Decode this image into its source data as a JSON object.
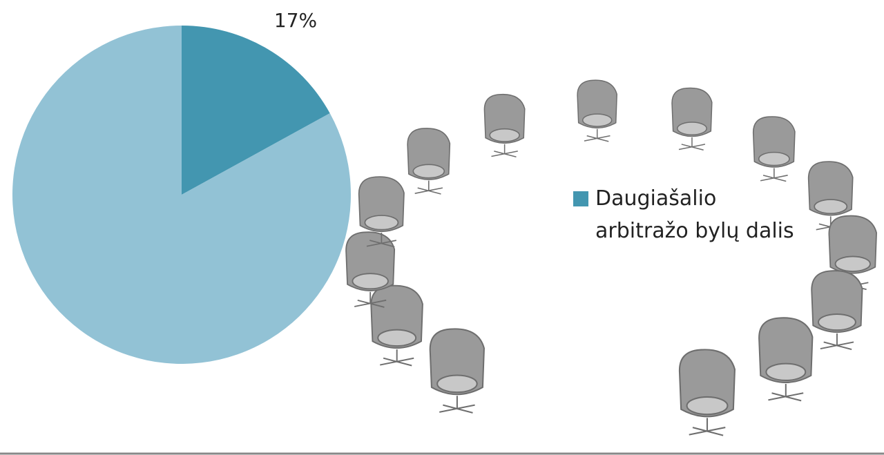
{
  "chart_data": {
    "type": "pie",
    "categories": [
      "Daugiašalio arbitražo bylų dalis",
      null
    ],
    "values": [
      17,
      83
    ],
    "value_labels": [
      "17%",
      null
    ],
    "colors": [
      "#4396b0",
      "#92c2d5"
    ]
  }
}
